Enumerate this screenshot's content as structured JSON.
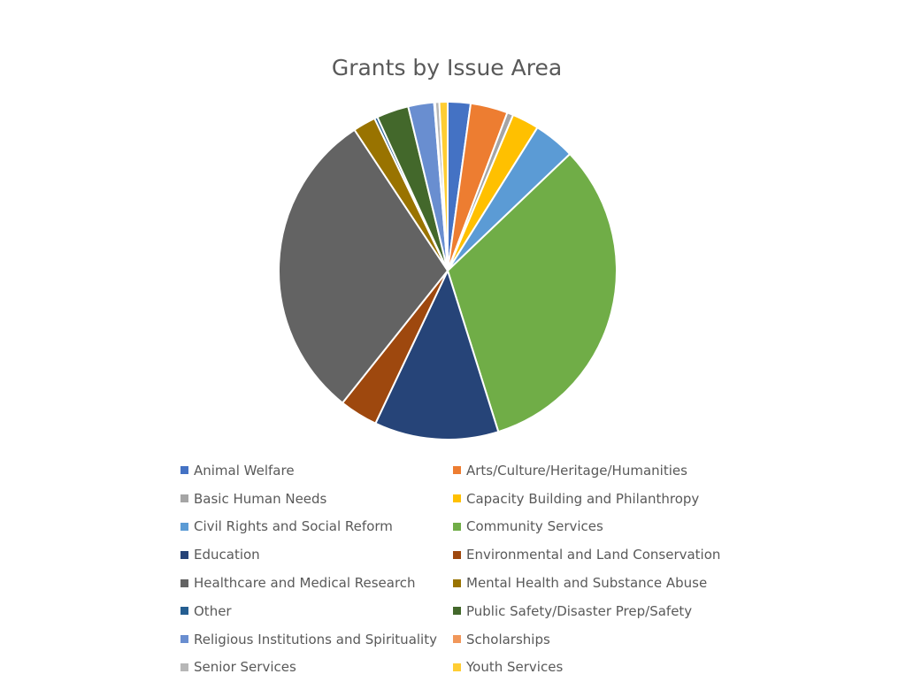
{
  "chart_data": {
    "type": "pie",
    "title": "Grants by Issue Area",
    "legend_position": "bottom",
    "categories": [
      "Animal Welfare",
      "Arts/Culture/Heritage/Humanities",
      "Basic Human Needs",
      "Capacity Building and Philanthropy",
      "Civil Rights and Social Reform",
      "Community Services",
      "Education",
      "Environmental and Land Conservation",
      "Healthcare and Medical Research",
      "Mental Health and Substance Abuse",
      "Other",
      "Public Safety/Disaster Prep/Safety",
      "Religious Institutions and Spirituality",
      "Scholarships",
      "Senior Services",
      "Youth Services"
    ],
    "values": [
      2.2,
      3.6,
      0.6,
      2.6,
      4.0,
      32.6,
      12.0,
      3.7,
      30.3,
      2.2,
      0.3,
      3.1,
      2.5,
      0.1,
      0.4,
      0.8
    ],
    "colors": [
      "#4472C4",
      "#ED7D31",
      "#A5A5A5",
      "#FFC000",
      "#5B9BD5",
      "#70AD47",
      "#264478",
      "#9E480E",
      "#636363",
      "#997300",
      "#255E91",
      "#43682B",
      "#698ED0",
      "#F1975A",
      "#B7B7B7",
      "#FFCD33"
    ]
  }
}
